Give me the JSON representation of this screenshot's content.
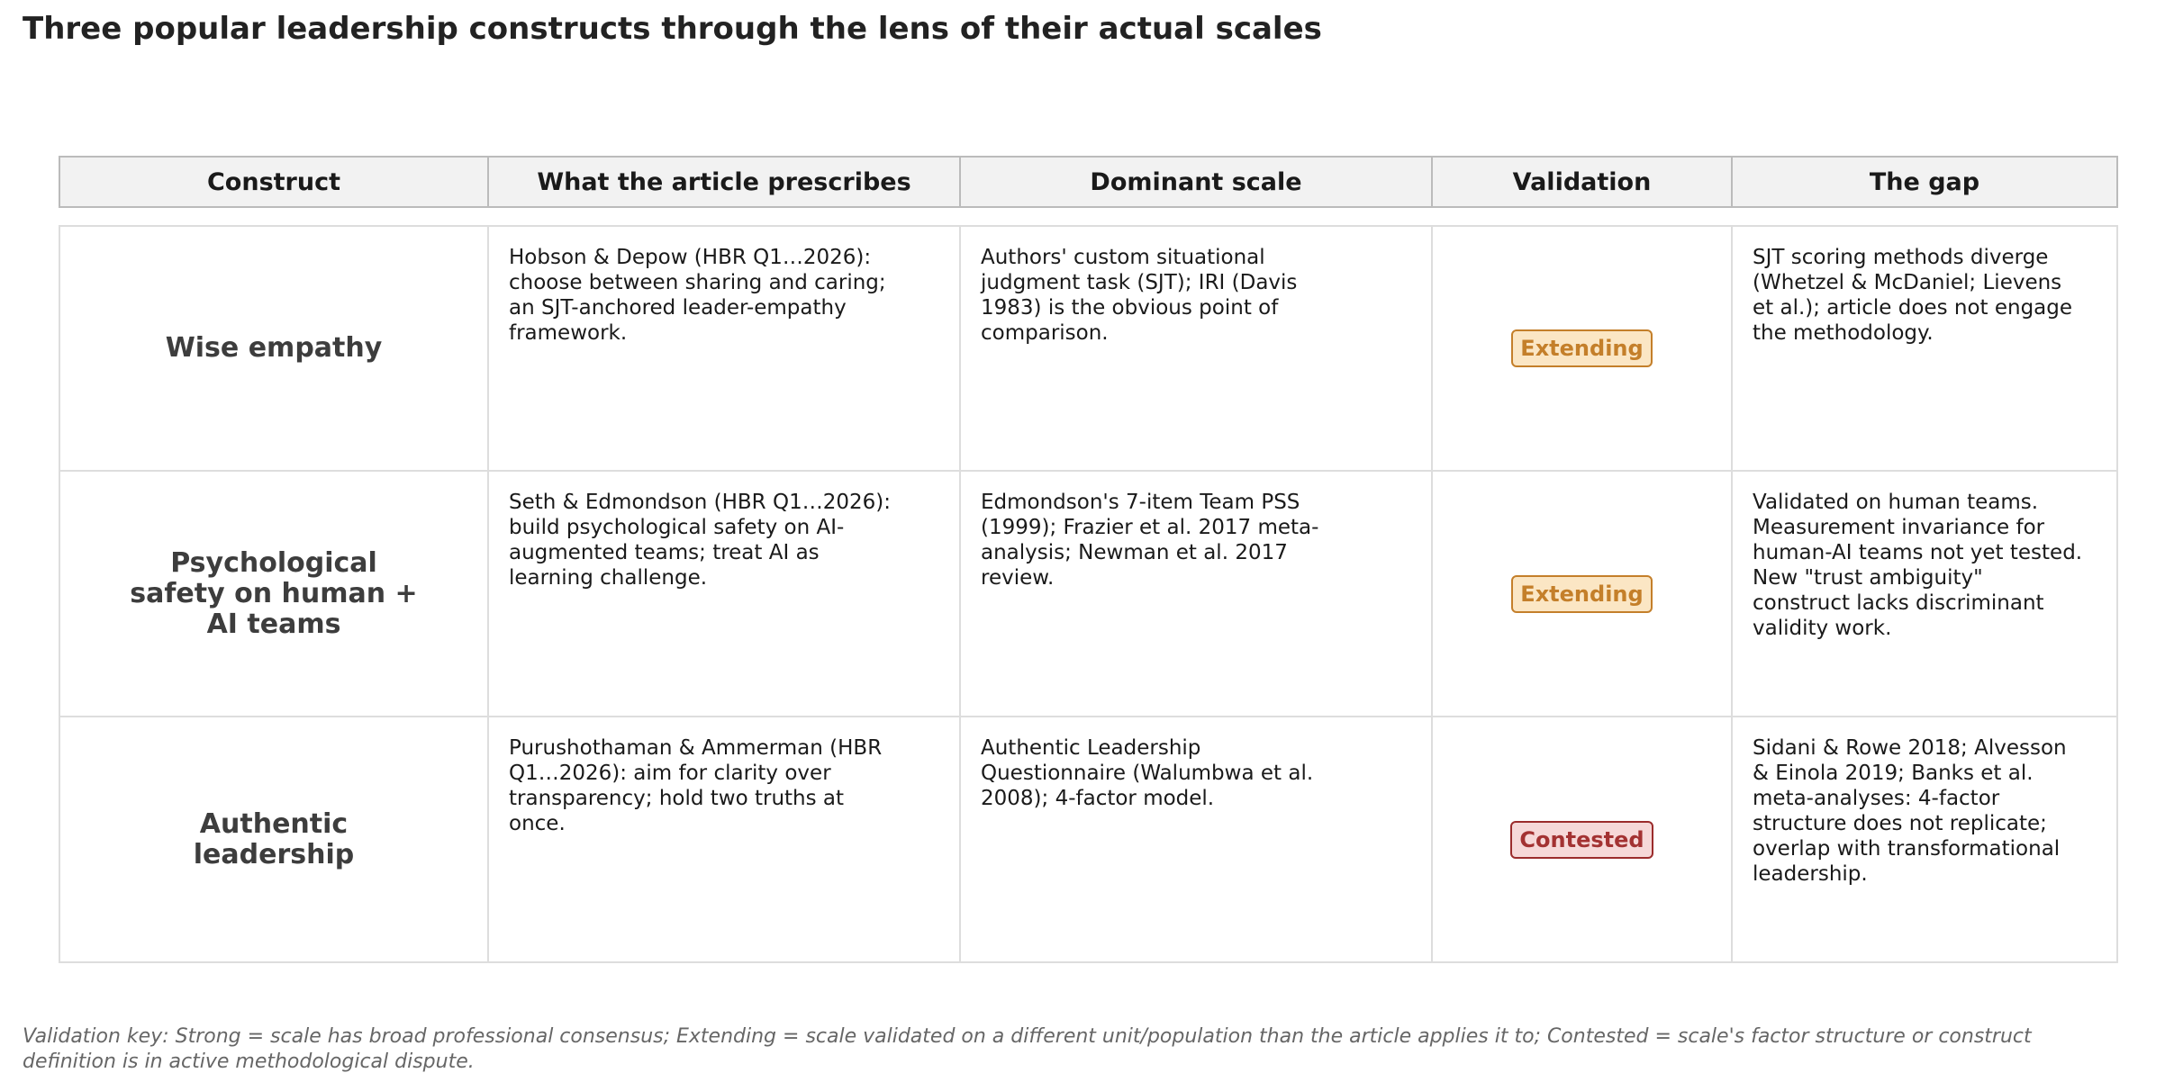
{
  "title": "Three popular leadership constructs through the lens of their actual scales",
  "table": {
    "header": [
      "Construct",
      "What the article prescribes",
      "Dominant scale",
      "Validation",
      "The gap"
    ],
    "rows": [
      [
        "Wise empathy",
        "Hobson & Depow (HBR Q1…2026): choose between sharing and caring; an SJT-anchored leader-empathy framework.",
        "Authors' custom situational judgment task (SJT); IRI (Davis 1983) is the obvious point of comparison.",
        "Extending",
        "SJT scoring methods diverge (Whetzel & McDaniel; Lievens et al.); article does not engage the methodology."
      ],
      [
        "Psychological safety on human + AI teams",
        "Seth & Edmondson (HBR Q1…2026): build psychological safety on AI-augmented teams; treat AI as learning challenge.",
        "Edmondson's 7-item Team PSS (1999); Frazier et al. 2017 meta-analysis; Newman et al. 2017 review.",
        "Extending",
        "Validated on human teams. Measurement invariance for human-AI teams not yet tested. New \"trust ambiguity\" construct lacks discriminant validity work."
      ],
      [
        "Authentic leadership",
        "Purushothaman & Ammerman (HBR Q1…2026): aim for clarity over transparency; hold two truths at once.",
        "Authentic Leadership Questionnaire (Walumbwa et al. 2008); 4-factor model.",
        "Contested",
        "Sidani & Rowe 2018; Alvesson & Einola 2019; Banks et al. meta-analyses: 4-factor structure does not replicate; overlap with transformational leadership."
      ]
    ]
  },
  "footnote": "Validation key: Strong = scale has broad professional consensus; Extending = scale validated on a different unit/population than the article applies it to; Contested = scale's factor structure or construct definition is in active methodological dispute."
}
